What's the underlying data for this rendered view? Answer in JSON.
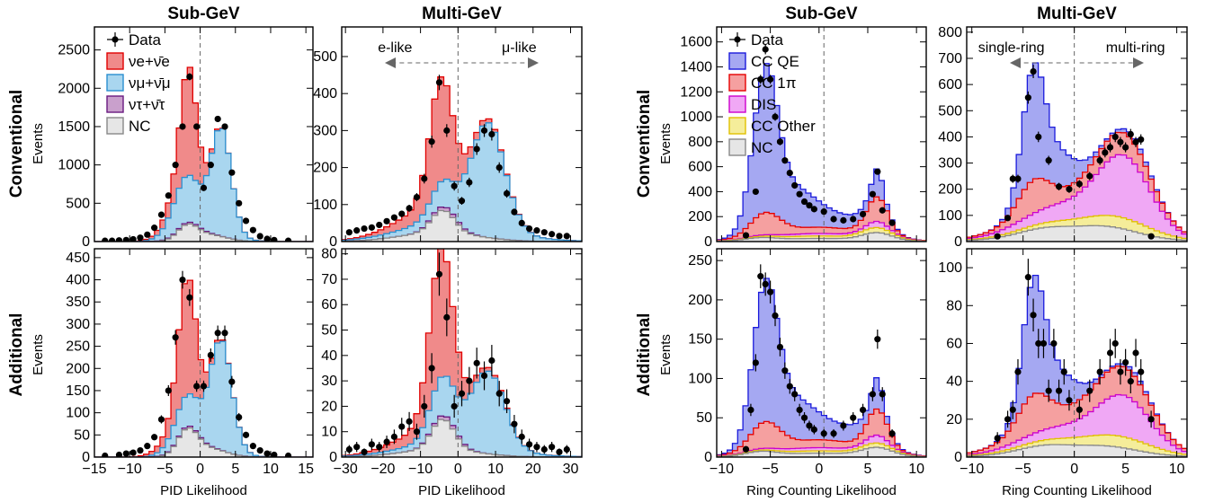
{
  "colors": {
    "nue": "#f08a8a",
    "nue_line": "#e00000",
    "numu": "#a9d6ef",
    "numu_line": "#2a8fd0",
    "nutau": "#c9a0cc",
    "nutau_line": "#6a1a80",
    "nc": "#e6e6e6",
    "nc_line": "#888888",
    "ccqe": "#a5a8f2",
    "ccqe_line": "#1a1adb",
    "cc1pi": "#f5a0a0",
    "cc1pi_line": "#e60000",
    "dis": "#f0a8f5",
    "dis_line": "#cc00cc",
    "ccother": "#f5ed9a",
    "ccother_line": "#e0c000"
  },
  "row_labels": [
    {
      "title": "Conventional",
      "ylabel": "Events"
    },
    {
      "title": "Additional",
      "ylabel": "Events"
    }
  ],
  "chart_data": [
    {
      "type": "area",
      "id": "pid-sub-conv",
      "title": "Sub-GeV",
      "xlabel": "",
      "ylabel": "Events",
      "xlim": [
        -15,
        16
      ],
      "ylim": [
        0,
        2800
      ],
      "xticks": [],
      "yticks": [
        0,
        500,
        1000,
        1500,
        2000,
        2500
      ],
      "divider": 0,
      "legend": [
        "Data",
        "νe+ν̄e",
        "νμ+ν̄μ",
        "ντ+ν̄τ",
        "NC"
      ],
      "stack": [
        "nc",
        "nutau",
        "numu",
        "nue"
      ],
      "components": {
        "nue": "Gauss",
        "numu": "Gauss"
      },
      "params": {
        "nue": [
          [
            -1.6,
            1.1,
            1200
          ],
          [
            -2.5,
            2.2,
            250
          ]
        ],
        "numu": [
          [
            -2.0,
            2.0,
            550
          ],
          [
            3.0,
            1.4,
            1300
          ],
          [
            1.5,
            3.0,
            120
          ]
        ],
        "nutau": [
          [
            -1.5,
            2.5,
            22
          ]
        ],
        "nc": [
          [
            -1.8,
            1.4,
            180
          ],
          [
            1.0,
            2.5,
            90
          ]
        ]
      },
      "data_x": [
        -13.5,
        -12.5,
        -11.5,
        -10.5,
        -9.5,
        -8.5,
        -7.5,
        -6.5,
        -5.5,
        -4.5,
        -3.5,
        -2.5,
        -1.5,
        -0.5,
        0.5,
        1.5,
        2.5,
        3.5,
        4.5,
        5.5,
        6.5,
        7.5,
        8.5,
        9.5,
        10.5,
        12.5
      ],
      "data_y": [
        10,
        10,
        15,
        20,
        30,
        50,
        90,
        180,
        350,
        600,
        1000,
        1500,
        2150,
        1500,
        700,
        1000,
        1600,
        1500,
        900,
        500,
        270,
        150,
        70,
        35,
        20,
        10
      ]
    },
    {
      "type": "area",
      "id": "pid-multi-conv",
      "title": "Multi-GeV",
      "xlabel": "",
      "ylabel": "",
      "xlim": [
        -31,
        33
      ],
      "ylim": [
        0,
        580
      ],
      "xticks": [],
      "yticks": [
        0,
        100,
        200,
        300,
        400,
        500
      ],
      "divider": 0,
      "arrows": {
        "left": "e-like",
        "right": "μ-like"
      },
      "stack": [
        "nc",
        "nutau",
        "numu",
        "nue"
      ],
      "params": {
        "nue": [
          [
            -4.5,
            3.0,
            240
          ],
          [
            -7.0,
            9.0,
            45
          ]
        ],
        "numu": [
          [
            -4.0,
            3.5,
            35
          ],
          [
            8.0,
            4.5,
            285
          ],
          [
            0.0,
            14.0,
            30
          ]
        ],
        "nutau": [
          [
            -3.0,
            4.0,
            10
          ]
        ],
        "nc": [
          [
            -4.0,
            3.0,
            60
          ],
          [
            -5.0,
            10.0,
            25
          ]
        ]
      },
      "data_x": [
        -29,
        -27,
        -25,
        -23,
        -21,
        -19,
        -17,
        -15,
        -13,
        -11,
        -9,
        -7,
        -5,
        -3,
        -1,
        1,
        3,
        5,
        7,
        9,
        11,
        13,
        15,
        17,
        19,
        21,
        23,
        25,
        27,
        29
      ],
      "data_y": [
        25,
        30,
        35,
        38,
        45,
        55,
        65,
        75,
        90,
        120,
        170,
        270,
        430,
        300,
        150,
        110,
        160,
        250,
        300,
        290,
        200,
        130,
        80,
        50,
        35,
        30,
        25,
        20,
        15,
        15
      ]
    },
    {
      "type": "area",
      "id": "pid-sub-add",
      "title": "",
      "xlabel": "PID Likelihood",
      "ylabel": "Events",
      "xlim": [
        -15,
        16
      ],
      "ylim": [
        0,
        470
      ],
      "xticks": [
        -15,
        -10,
        -5,
        0,
        5,
        10,
        15
      ],
      "yticks": [
        0,
        50,
        100,
        150,
        200,
        250,
        300,
        350,
        400,
        450
      ],
      "divider": 0,
      "stack": [
        "nc",
        "nutau",
        "numu",
        "nue"
      ],
      "params": {
        "nue": [
          [
            -1.8,
            1.2,
            230
          ],
          [
            -2.5,
            2.5,
            40
          ]
        ],
        "numu": [
          [
            -2.0,
            2.0,
            60
          ],
          [
            3.0,
            1.5,
            230
          ],
          [
            1.5,
            3.0,
            20
          ]
        ],
        "nutau": [
          [
            -1.5,
            2.5,
            4
          ]
        ],
        "nc": [
          [
            -1.8,
            1.4,
            55
          ],
          [
            1.0,
            2.5,
            20
          ]
        ]
      },
      "data_x": [
        -13.5,
        -11.5,
        -10.5,
        -9.5,
        -8.5,
        -7.5,
        -6.5,
        -5.5,
        -4.5,
        -3.5,
        -2.5,
        -1.5,
        -0.5,
        0.5,
        1.5,
        2.5,
        3.5,
        4.5,
        5.5,
        6.5,
        7.5,
        8.5,
        9.5,
        10.5,
        12.5
      ],
      "data_y": [
        3,
        5,
        8,
        10,
        15,
        25,
        45,
        85,
        150,
        270,
        400,
        360,
        160,
        160,
        230,
        280,
        280,
        170,
        90,
        50,
        25,
        15,
        8,
        5,
        3
      ]
    },
    {
      "type": "area",
      "id": "pid-multi-add",
      "title": "",
      "xlabel": "PID Likelihood",
      "ylabel": "",
      "xlim": [
        -31,
        33
      ],
      "ylim": [
        0,
        82
      ],
      "xticks": [
        -30,
        -20,
        -10,
        0,
        10,
        20,
        30
      ],
      "yticks": [
        0,
        10,
        20,
        30,
        40,
        50,
        60,
        70,
        80
      ],
      "divider": 0,
      "stack": [
        "nc",
        "nutau",
        "numu",
        "nue"
      ],
      "params": {
        "nue": [
          [
            -4.5,
            3.0,
            45
          ],
          [
            -7.0,
            9.0,
            6
          ]
        ],
        "numu": [
          [
            -4.0,
            3.5,
            12
          ],
          [
            8.0,
            4.5,
            30
          ],
          [
            0.0,
            14.0,
            3
          ]
        ],
        "nutau": [
          [
            -3.0,
            4.0,
            1.5
          ]
        ],
        "nc": [
          [
            -4.0,
            3.0,
            12
          ],
          [
            -5.0,
            10.0,
            3
          ]
        ]
      },
      "data_x": [
        -29,
        -27,
        -25,
        -23,
        -21,
        -19,
        -17,
        -15,
        -13,
        -11,
        -9,
        -7,
        -5,
        -3,
        -1,
        1,
        3,
        5,
        7,
        9,
        11,
        13,
        15,
        17,
        19,
        21,
        23,
        25,
        27,
        29
      ],
      "data_y": [
        3,
        4,
        2,
        5,
        4,
        6,
        8,
        12,
        14,
        10,
        20,
        35,
        72,
        55,
        20,
        25,
        30,
        37,
        32,
        38,
        25,
        22,
        13,
        8,
        5,
        4,
        3,
        4,
        2,
        3
      ]
    },
    {
      "type": "area",
      "id": "rc-sub-conv",
      "title": "Sub-GeV",
      "xlabel": "",
      "ylabel": "Events",
      "xlim": [
        -10.5,
        11
      ],
      "ylim": [
        0,
        1720
      ],
      "xticks": [],
      "yticks": [
        0,
        200,
        400,
        600,
        800,
        1000,
        1200,
        1400,
        1600
      ],
      "divider": 0.5,
      "legend": [
        "Data",
        "CC QE",
        "CC 1π",
        "DIS",
        "CC Other",
        "NC"
      ],
      "stack": [
        "nc",
        "ccother",
        "dis",
        "cc1pi",
        "ccqe"
      ],
      "params": {
        "ccqe": [
          [
            -5.5,
            1.2,
            1000
          ],
          [
            -3.0,
            2.5,
            300
          ],
          [
            6.0,
            0.5,
            180
          ],
          [
            4.0,
            2.0,
            50
          ],
          [
            1.0,
            3.0,
            60
          ]
        ],
        "cc1pi": [
          [
            -5.5,
            1.5,
            160
          ],
          [
            6.0,
            1.0,
            180
          ],
          [
            0.0,
            4.0,
            50
          ]
        ],
        "dis": [
          [
            6.0,
            1.0,
            40
          ],
          [
            0.0,
            5.0,
            20
          ]
        ],
        "ccother": [
          [
            6.0,
            1.5,
            30
          ],
          [
            0.0,
            5.0,
            20
          ]
        ],
        "nc": [
          [
            -6.0,
            1.5,
            20
          ],
          [
            0.0,
            5.0,
            25
          ],
          [
            6.0,
            1.5,
            60
          ]
        ]
      },
      "data_x": [
        -7.5,
        -6.5,
        -6.0,
        -5.5,
        -5.0,
        -4.5,
        -4.0,
        -3.5,
        -3.0,
        -2.5,
        -2.0,
        -1.5,
        -1.0,
        -0.5,
        0.5,
        1.5,
        2.5,
        3.5,
        4.5,
        5.5,
        6.0,
        6.5,
        7.5
      ],
      "data_y": [
        50,
        400,
        1300,
        1540,
        1300,
        1000,
        800,
        650,
        550,
        450,
        380,
        320,
        290,
        260,
        240,
        180,
        170,
        180,
        220,
        380,
        560,
        250,
        150
      ]
    },
    {
      "type": "area",
      "id": "rc-multi-conv",
      "title": "Multi-GeV",
      "xlabel": "",
      "ylabel": "",
      "xlim": [
        -10.5,
        11
      ],
      "ylim": [
        0,
        820
      ],
      "xticks": [],
      "yticks": [
        0,
        100,
        200,
        300,
        400,
        500,
        600,
        700,
        800
      ],
      "divider": 0,
      "arrows": {
        "left": "single-ring",
        "right": "multi-ring"
      },
      "stack": [
        "nc",
        "ccother",
        "dis",
        "cc1pi",
        "ccqe"
      ],
      "params": {
        "ccqe": [
          [
            -4.0,
            1.0,
            350
          ],
          [
            -2.0,
            2.0,
            150
          ],
          [
            6.0,
            1.5,
            20
          ]
        ],
        "cc1pi": [
          [
            -4.0,
            1.5,
            100
          ],
          [
            5.0,
            2.5,
            60
          ],
          [
            0.0,
            5.0,
            40
          ]
        ],
        "dis": [
          [
            5.0,
            2.5,
            220
          ],
          [
            -1.0,
            4.0,
            60
          ]
        ],
        "ccother": [
          [
            5.0,
            3.0,
            30
          ],
          [
            0.0,
            5.0,
            20
          ]
        ],
        "nc": [
          [
            -3.0,
            2.5,
            30
          ],
          [
            3.0,
            3.0,
            40
          ],
          [
            0.0,
            6.0,
            20
          ]
        ]
      },
      "data_x": [
        -7.5,
        -6.5,
        -6.0,
        -5.5,
        -4.5,
        -4.0,
        -3.5,
        -2.5,
        -1.5,
        -0.5,
        0.5,
        1.5,
        2.5,
        3.0,
        3.5,
        4.0,
        4.5,
        5.0,
        5.5,
        6.0,
        6.5,
        7.5
      ],
      "data_y": [
        20,
        90,
        240,
        240,
        550,
        650,
        400,
        310,
        210,
        200,
        220,
        250,
        310,
        340,
        360,
        400,
        380,
        360,
        410,
        380,
        390,
        20
      ]
    },
    {
      "type": "area",
      "id": "rc-sub-add",
      "title": "",
      "xlabel": "Ring Counting Likelihood",
      "ylabel": "Events",
      "xlim": [
        -10.5,
        11
      ],
      "ylim": [
        0,
        265
      ],
      "xticks": [
        -10,
        -5,
        0,
        5,
        10
      ],
      "yticks": [
        0,
        50,
        100,
        150,
        200,
        250
      ],
      "divider": 0.5,
      "stack": [
        "nc",
        "ccother",
        "dis",
        "cc1pi",
        "ccqe"
      ],
      "params": {
        "ccqe": [
          [
            -5.5,
            1.2,
            150
          ],
          [
            -3.0,
            2.5,
            50
          ],
          [
            6.0,
            0.5,
            30
          ],
          [
            4.0,
            2.0,
            12
          ],
          [
            1.0,
            3.0,
            10
          ]
        ],
        "cc1pi": [
          [
            -5.5,
            1.5,
            30
          ],
          [
            6.0,
            1.0,
            30
          ],
          [
            0.0,
            4.0,
            10
          ]
        ],
        "dis": [
          [
            6.0,
            1.0,
            8
          ],
          [
            0.0,
            5.0,
            4
          ]
        ],
        "ccother": [
          [
            6.0,
            1.5,
            4
          ],
          [
            0.0,
            5.0,
            3
          ]
        ],
        "nc": [
          [
            -6.0,
            1.5,
            5
          ],
          [
            0.0,
            5.0,
            5
          ],
          [
            6.0,
            1.5,
            10
          ]
        ]
      },
      "data_x": [
        -7.5,
        -7.0,
        -6.5,
        -6.0,
        -5.5,
        -5.0,
        -4.5,
        -4.0,
        -3.5,
        -3.0,
        -2.5,
        -2.0,
        -1.5,
        -1.0,
        -0.5,
        0.5,
        1.5,
        2.5,
        3.5,
        4.5,
        5.5,
        6.0,
        6.5,
        7.5
      ],
      "data_y": [
        10,
        60,
        120,
        230,
        220,
        210,
        180,
        140,
        110,
        90,
        80,
        60,
        50,
        40,
        35,
        30,
        30,
        40,
        50,
        60,
        80,
        150,
        80,
        30
      ]
    },
    {
      "type": "area",
      "id": "rc-multi-add",
      "title": "",
      "xlabel": "Ring Counting Likelihood",
      "ylabel": "",
      "xlim": [
        -10.5,
        11
      ],
      "ylim": [
        0,
        110
      ],
      "xticks": [
        -10,
        -5,
        0,
        5,
        10
      ],
      "yticks": [
        0,
        20,
        40,
        60,
        80,
        100
      ],
      "divider": 0,
      "stack": [
        "nc",
        "ccother",
        "dis",
        "cc1pi",
        "ccqe"
      ],
      "params": {
        "ccqe": [
          [
            -4.0,
            1.0,
            50
          ],
          [
            -2.0,
            2.0,
            20
          ],
          [
            6.0,
            1.5,
            2
          ]
        ],
        "cc1pi": [
          [
            -4.0,
            1.5,
            15
          ],
          [
            5.0,
            2.5,
            10
          ],
          [
            0.0,
            5.0,
            8
          ]
        ],
        "dis": [
          [
            5.0,
            2.5,
            20
          ],
          [
            -1.0,
            4.0,
            6
          ]
        ],
        "ccother": [
          [
            5.0,
            3.0,
            4
          ],
          [
            0.0,
            5.0,
            3
          ]
        ],
        "nc": [
          [
            -3.0,
            2.5,
            4
          ],
          [
            3.0,
            3.0,
            4
          ],
          [
            0.0,
            6.0,
            2
          ]
        ]
      },
      "data_x": [
        -7.5,
        -6.5,
        -6.0,
        -5.5,
        -4.5,
        -4.0,
        -3.5,
        -3.0,
        -2.5,
        -2.0,
        -1.5,
        -1.0,
        -0.5,
        0.5,
        1.5,
        2.5,
        3.5,
        4.0,
        4.5,
        5.0,
        5.5,
        6.0,
        6.5,
        7.5
      ],
      "data_y": [
        10,
        20,
        25,
        45,
        95,
        75,
        60,
        60,
        35,
        60,
        35,
        45,
        30,
        25,
        35,
        45,
        55,
        60,
        45,
        50,
        40,
        55,
        45,
        20
      ]
    }
  ]
}
